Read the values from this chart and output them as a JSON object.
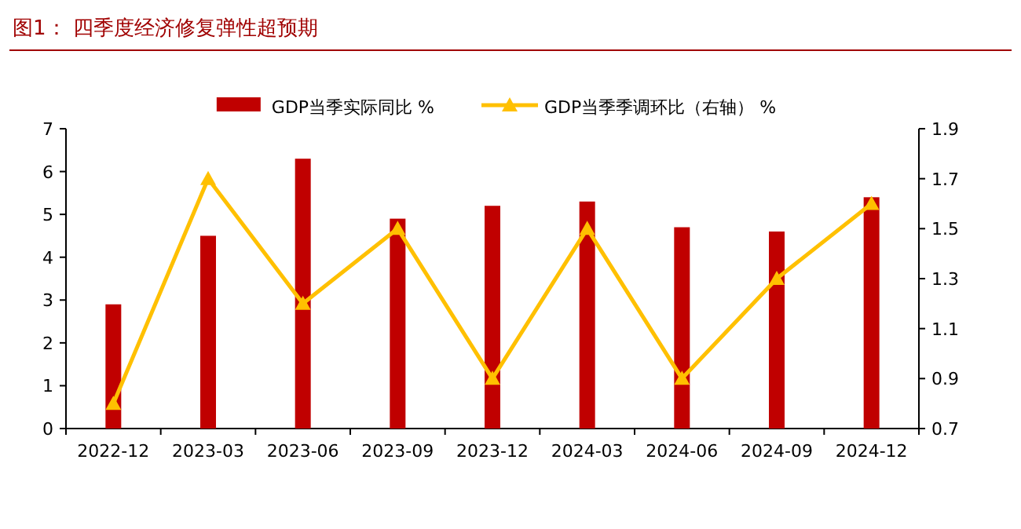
{
  "chart_data": {
    "type": "bar",
    "title": "图1： 四季度经济修复弹性超预期",
    "categories": [
      "2022-12",
      "2023-03",
      "2023-06",
      "2023-09",
      "2023-12",
      "2024-03",
      "2024-06",
      "2024-09",
      "2024-12"
    ],
    "series": [
      {
        "name": "GDP当季实际同比 %",
        "color": "#c00000",
        "values": [
          2.9,
          4.5,
          6.3,
          4.9,
          5.2,
          5.3,
          4.7,
          4.6,
          5.4
        ]
      },
      {
        "name": "GDP当季季调环比（右轴） %",
        "type": "line",
        "axis": "y2",
        "color": "#ffc000",
        "values": [
          0.8,
          1.7,
          1.2,
          1.5,
          0.9,
          1.5,
          0.9,
          1.3,
          1.6
        ]
      }
    ],
    "ylim": [
      0,
      7
    ],
    "yticks": [
      0,
      1,
      2,
      3,
      4,
      5,
      6,
      7
    ],
    "y2lim": [
      0.7,
      1.9
    ],
    "y2ticks": [
      0.7,
      0.9,
      1.1,
      1.3,
      1.5,
      1.7,
      1.9
    ],
    "legend": "top",
    "marker": "triangle",
    "grid": false
  }
}
